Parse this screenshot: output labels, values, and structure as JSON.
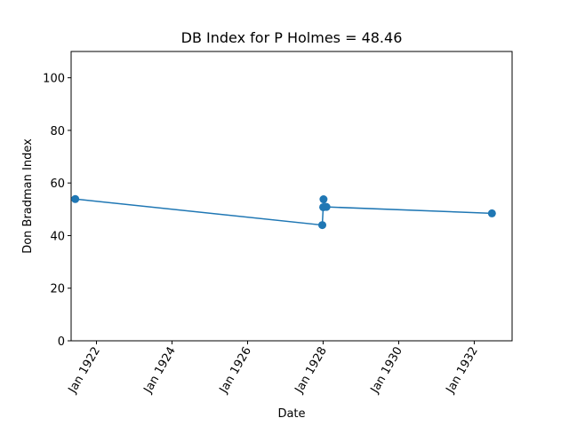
{
  "chart_data": {
    "type": "line",
    "title": "DB Index for P Holmes = 48.46",
    "xlabel": "Date",
    "ylabel": "Don Bradman Index",
    "ylim": [
      0,
      110
    ],
    "yticks": [
      0,
      20,
      40,
      60,
      80,
      100
    ],
    "xlim": [
      "1921-05-01",
      "1933-01-01"
    ],
    "xticks": [
      {
        "date": "1922-01-01",
        "label": "Jan 1922"
      },
      {
        "date": "1924-01-01",
        "label": "Jan 1924"
      },
      {
        "date": "1926-01-01",
        "label": "Jan 1926"
      },
      {
        "date": "1928-01-01",
        "label": "Jan 1928"
      },
      {
        "date": "1930-01-01",
        "label": "Jan 1930"
      },
      {
        "date": "1932-01-01",
        "label": "Jan 1932"
      }
    ],
    "grid": false,
    "color": "#1f77b4",
    "series": [
      {
        "points": [
          {
            "x": "1921-06-10",
            "y": 53.9
          },
          {
            "x": "1927-12-24",
            "y": 44.0
          },
          {
            "x": "1928-01-02",
            "y": 50.8
          },
          {
            "x": "1928-01-05",
            "y": 53.8
          },
          {
            "x": "1928-02-02",
            "y": 50.9
          },
          {
            "x": "1932-06-20",
            "y": 48.46
          }
        ]
      }
    ]
  }
}
